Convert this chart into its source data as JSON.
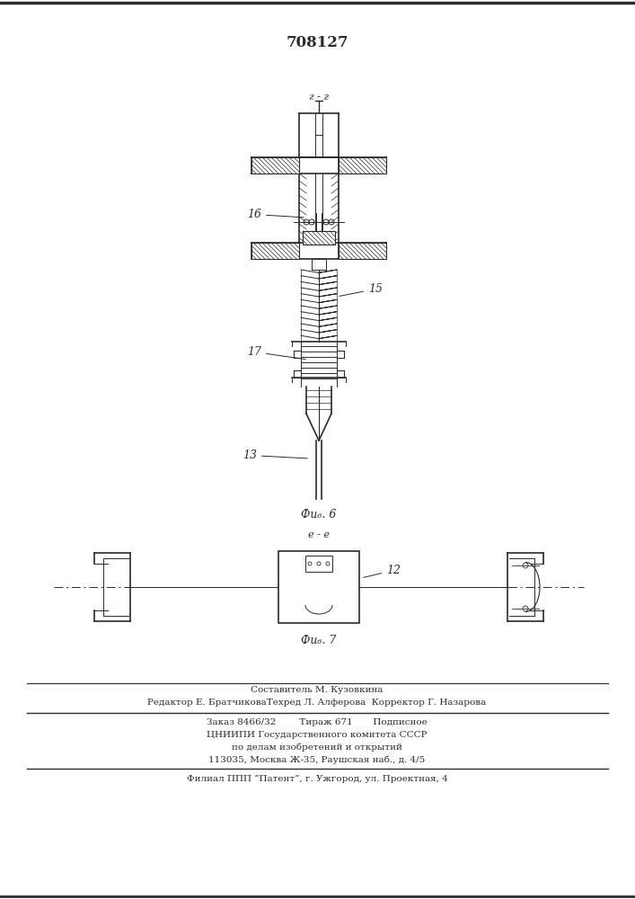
{
  "patent_number": "708127",
  "fig6_label": "Фи₆. 6",
  "fig7_label": "Фи₆. 7",
  "section_label_fig6": "г - г",
  "section_label_fig7": "е - е",
  "label_16": "16",
  "label_17": "17",
  "label_15": "15",
  "label_13": "13",
  "label_12": "12",
  "footer_line1": "Составитель М. Кузовкина",
  "footer_line2": "Редактор Е. БратчиковаТехред Л. Алферова  Корректор Г. Назарова",
  "footer_line3": "Заказ 8466/32        Тираж 671       Подписное",
  "footer_line4": "ЦНИИПИ Государственного комитета СССР",
  "footer_line5": "по делам изобретений и открытий",
  "footer_line6": "113035, Москва Ж-35, Раушская наб., д. 4/5",
  "footer_line7": "Филиал ППП “Патент”, г. Ужгород, ул. Проектная, 4",
  "bg_color": "#ffffff",
  "line_color": "#2a2a2a"
}
